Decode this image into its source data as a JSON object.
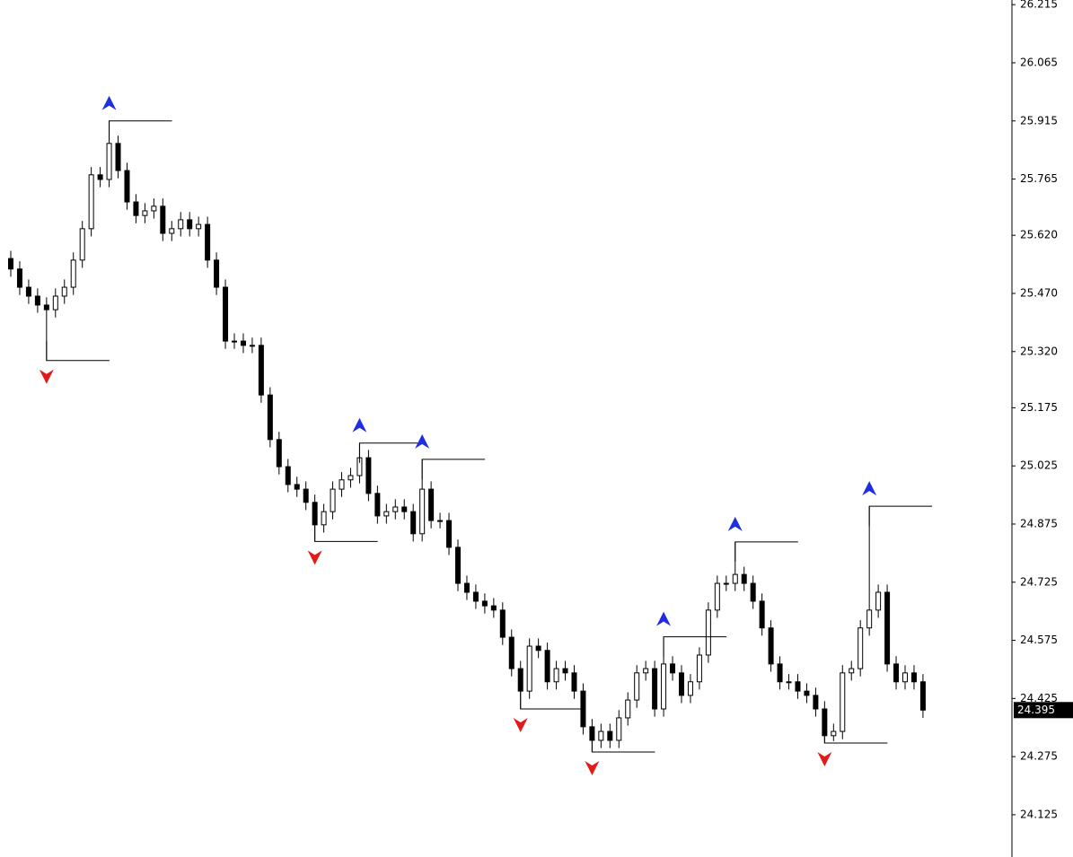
{
  "chart_data": {
    "type": "candlestick",
    "open": [
      25.56,
      25.533,
      25.486,
      25.463,
      25.44,
      25.428,
      25.463,
      25.486,
      25.556,
      25.637,
      25.776,
      25.764,
      25.857,
      25.787,
      25.706,
      25.671,
      25.683,
      25.695,
      25.625,
      25.637,
      25.66,
      25.637,
      25.648,
      25.556,
      25.486,
      25.347,
      25.347,
      25.336,
      25.336,
      25.208,
      25.093,
      25.023,
      24.977,
      24.965,
      24.931,
      24.873,
      24.907,
      24.965,
      24.989,
      25.0,
      25.046,
      24.954,
      24.896,
      24.907,
      24.919,
      24.907,
      24.85,
      24.965,
      24.884,
      24.884,
      24.815,
      24.722,
      24.699,
      24.676,
      24.664,
      24.653,
      24.583,
      24.502,
      24.444,
      24.56,
      24.549,
      24.468,
      24.502,
      24.491,
      24.444,
      24.352,
      24.317,
      24.34,
      24.317,
      24.375,
      24.421,
      24.491,
      24.502,
      24.398,
      24.514,
      24.491,
      24.433,
      24.468,
      24.537,
      24.653,
      24.722,
      24.722,
      24.745,
      24.722,
      24.676,
      24.607,
      24.514,
      24.468,
      24.468,
      24.444,
      24.433,
      24.398,
      24.329,
      24.34,
      24.491,
      24.502,
      24.607,
      24.653,
      24.699,
      24.514,
      24.468,
      24.491,
      24.468
    ],
    "high": [
      25.58,
      25.553,
      25.506,
      25.483,
      25.46,
      25.483,
      25.506,
      25.576,
      25.657,
      25.796,
      25.796,
      25.915,
      25.877,
      25.807,
      25.726,
      25.703,
      25.715,
      25.715,
      25.657,
      25.68,
      25.68,
      25.668,
      25.668,
      25.576,
      25.506,
      25.367,
      25.367,
      25.356,
      25.356,
      25.228,
      25.113,
      25.043,
      24.997,
      24.985,
      24.951,
      24.927,
      24.985,
      25.009,
      25.02,
      25.084,
      25.066,
      24.974,
      24.927,
      24.939,
      24.939,
      24.927,
      25.042,
      24.985,
      24.904,
      24.904,
      24.835,
      24.742,
      24.719,
      24.696,
      24.684,
      24.673,
      24.603,
      24.522,
      24.58,
      24.58,
      24.569,
      24.522,
      24.522,
      24.511,
      24.464,
      24.372,
      24.36,
      24.36,
      24.395,
      24.441,
      24.511,
      24.522,
      24.522,
      24.584,
      24.534,
      24.511,
      24.488,
      24.557,
      24.673,
      24.742,
      24.742,
      24.829,
      24.765,
      24.742,
      24.696,
      24.627,
      24.534,
      24.488,
      24.488,
      24.464,
      24.453,
      24.418,
      24.36,
      24.511,
      24.522,
      24.627,
      24.921,
      24.719,
      24.719,
      24.534,
      24.511,
      24.511,
      24.488
    ],
    "low": [
      25.513,
      25.466,
      25.443,
      25.42,
      25.297,
      25.408,
      25.443,
      25.466,
      25.536,
      25.617,
      25.744,
      25.744,
      25.767,
      25.686,
      25.651,
      25.651,
      25.663,
      25.605,
      25.605,
      25.617,
      25.617,
      25.617,
      25.536,
      25.466,
      25.327,
      25.327,
      25.316,
      25.316,
      25.188,
      25.073,
      25.003,
      24.957,
      24.945,
      24.911,
      24.83,
      24.853,
      24.887,
      24.945,
      24.969,
      24.98,
      24.934,
      24.876,
      24.876,
      24.887,
      24.887,
      24.83,
      24.83,
      24.864,
      24.864,
      24.795,
      24.702,
      24.679,
      24.656,
      24.644,
      24.633,
      24.563,
      24.482,
      24.398,
      24.424,
      24.529,
      24.448,
      24.448,
      24.471,
      24.424,
      24.332,
      24.287,
      24.297,
      24.297,
      24.297,
      24.355,
      24.401,
      24.471,
      24.378,
      24.378,
      24.471,
      24.413,
      24.413,
      24.448,
      24.517,
      24.633,
      24.702,
      24.702,
      24.702,
      24.656,
      24.587,
      24.494,
      24.448,
      24.448,
      24.424,
      24.413,
      24.378,
      24.31,
      24.315,
      24.32,
      24.471,
      24.482,
      24.587,
      24.633,
      24.494,
      24.448,
      24.448,
      24.448,
      24.375
    ],
    "close": [
      25.533,
      25.486,
      25.463,
      25.44,
      25.428,
      25.463,
      25.486,
      25.556,
      25.637,
      25.776,
      25.764,
      25.857,
      25.787,
      25.706,
      25.671,
      25.683,
      25.695,
      25.625,
      25.637,
      25.66,
      25.637,
      25.648,
      25.556,
      25.486,
      25.347,
      25.347,
      25.336,
      25.336,
      25.208,
      25.093,
      25.023,
      24.977,
      24.965,
      24.931,
      24.873,
      24.907,
      24.965,
      24.989,
      25.0,
      25.046,
      24.954,
      24.896,
      24.907,
      24.919,
      24.907,
      24.85,
      24.965,
      24.884,
      24.884,
      24.815,
      24.722,
      24.699,
      24.676,
      24.664,
      24.653,
      24.583,
      24.502,
      24.444,
      24.56,
      24.549,
      24.468,
      24.502,
      24.491,
      24.444,
      24.352,
      24.317,
      24.34,
      24.317,
      24.375,
      24.421,
      24.491,
      24.502,
      24.398,
      24.514,
      24.491,
      24.433,
      24.468,
      24.537,
      24.653,
      24.722,
      24.722,
      24.745,
      24.722,
      24.676,
      24.607,
      24.514,
      24.468,
      24.468,
      24.444,
      24.433,
      24.398,
      24.329,
      24.34,
      24.491,
      24.502,
      24.607,
      24.653,
      24.699,
      24.514,
      24.468,
      24.491,
      24.468,
      24.395
    ],
    "peaks": [
      {
        "index": 11,
        "value": 25.915
      },
      {
        "index": 39,
        "value": 25.084
      },
      {
        "index": 46,
        "value": 25.042
      },
      {
        "index": 73,
        "value": 24.584
      },
      {
        "index": 81,
        "value": 24.829
      },
      {
        "index": 96,
        "value": 24.921
      }
    ],
    "troughs": [
      {
        "index": 4,
        "value": 25.297
      },
      {
        "index": 34,
        "value": 24.83
      },
      {
        "index": 57,
        "value": 24.398
      },
      {
        "index": 65,
        "value": 24.287
      },
      {
        "index": 91,
        "value": 24.31
      }
    ],
    "ylim": [
      24.016,
      26.227
    ],
    "yticks": [
      26.215,
      26.065,
      25.915,
      25.765,
      {
        "value": 25.62,
        "label": "25.620"
      },
      {
        "value": 25.47,
        "label": "25.470"
      },
      {
        "value": 25.32,
        "label": "25.320"
      },
      25.175,
      25.025,
      24.875,
      24.725,
      24.575,
      24.425,
      24.275,
      24.125
    ],
    "up_color": "#ffffff",
    "down_color": "#000000",
    "peak_color": "#1f2fe0",
    "trough_color": "#e21a1a"
  }
}
